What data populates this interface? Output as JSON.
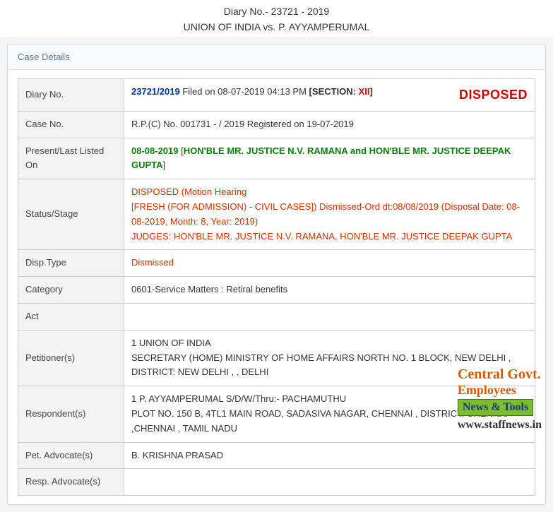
{
  "header": {
    "diary_line": "Diary No.- 23721 - 2019",
    "case_title": "UNION OF INDIA vs. P. AYYAMPERUMAL"
  },
  "panel": {
    "title": "Case Details"
  },
  "rows": {
    "diary_no": {
      "label": "Diary No.",
      "value": "23721/2019",
      "filed": " Filed on 08-07-2019 04:13 PM   ",
      "section_label": "[SECTION: ",
      "section_val": "XII",
      "section_close": "]",
      "flag": "DISPOSED"
    },
    "case_no": {
      "label": "Case No.",
      "value": "R.P.(C) No. 001731 - / 2019  Registered on 19-07-2019"
    },
    "listed": {
      "label": "Present/Last Listed On",
      "date": "08-08-2019",
      "open": " [",
      "bench": "HON'BLE MR. JUSTICE N.V. RAMANA and HON'BLE MR. JUSTICE DEEPAK GUPTA",
      "close": "]"
    },
    "status": {
      "label": "Status/Stage",
      "l1": "DISPOSED (Motion Hearing",
      "l2": "[FRESH (FOR ADMISSION) - CIVIL CASES]) Dismissed-Ord dt:08/08/2019 (Disposal Date: 08-08-2019, Month: 8, Year: 2019)",
      "l3": "JUDGES: HON'BLE MR. JUSTICE N.V. RAMANA, HON'BLE MR. JUSTICE DEEPAK GUPTA"
    },
    "disp_type": {
      "label": "Disp.Type",
      "value": "Dismissed"
    },
    "category": {
      "label": "Category",
      "value": "0601-Service Matters : Retiral benefits"
    },
    "act": {
      "label": "Act",
      "value": ""
    },
    "petitioners": {
      "label": "Petitioner(s)",
      "l1": " 1 UNION OF INDIA",
      "l2": "  SECRETARY (HOME) MINISTRY OF HOME AFFAIRS NORTH NO. 1 BLOCK, NEW DELHI , DISTRICT: NEW DELHI , , DELHI"
    },
    "respondents": {
      "label": "Respondent(s)",
      "l1": " 1 P. AYYAMPERUMAL S/D/W/Thru:- PACHAMUTHU",
      "l2": "  PLOT NO. 150 B, 4TL1 MAIN ROAD, SADASIVA NAGAR, CHENNAI , DISTRICT: CHENNAI ,CHENNAI , TAMIL NADU"
    },
    "pet_adv": {
      "label": "Pet. Advocate(s)",
      "value": "  B. KRISHNA PRASAD"
    },
    "resp_adv": {
      "label": "Resp. Advocate(s)",
      "value": ""
    }
  },
  "watermark": {
    "l1": "Central Govt.",
    "l2": "Employees",
    "l3": "News & Tools",
    "url": "www.staffnews.in"
  }
}
